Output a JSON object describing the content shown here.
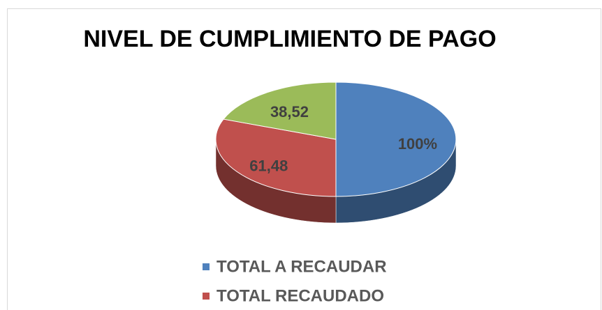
{
  "chart_data": {
    "type": "pie3d",
    "title": "NIVEL DE CUMPLIMIENTO DE PAGO",
    "categories": [
      "TOTAL A RECAUDAR",
      "TOTAL RECAUDADO",
      null
    ],
    "values": [
      100,
      61.48,
      38.52
    ],
    "value_labels": [
      "100%",
      "61,48",
      "38,52"
    ],
    "colors": [
      "#4f81bd",
      "#c0504d",
      "#9bbb59"
    ]
  }
}
